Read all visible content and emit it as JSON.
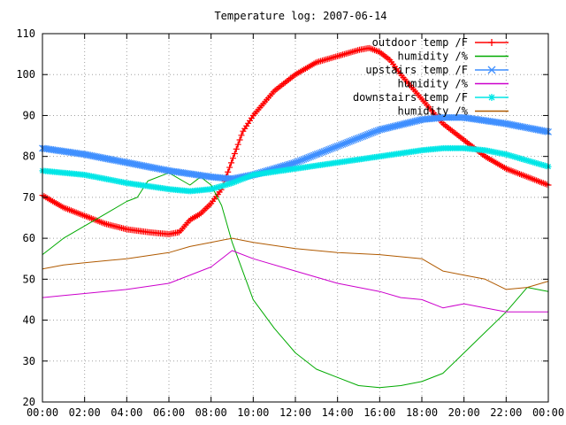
{
  "chart_data": {
    "type": "line",
    "title": "Temperature log: 2007-06-14",
    "xlabel": "",
    "ylabel": "",
    "xlim": [
      0,
      24
    ],
    "ylim": [
      20,
      110
    ],
    "grid": true,
    "legend_placement": "top-right",
    "x_ticks": [
      "00:00",
      "02:00",
      "04:00",
      "06:00",
      "08:00",
      "10:00",
      "12:00",
      "14:00",
      "16:00",
      "18:00",
      "20:00",
      "22:00",
      "00:00"
    ],
    "y_ticks": [
      "20",
      "30",
      "40",
      "50",
      "60",
      "70",
      "80",
      "90",
      "100",
      "110"
    ],
    "series": [
      {
        "name": "outdoor temp /F",
        "color": "#ff0000",
        "marker": "plus",
        "x": [
          0,
          1,
          2,
          3,
          4,
          5,
          6,
          6.5,
          7,
          7.5,
          8,
          8.5,
          9,
          9.5,
          10,
          11,
          12,
          13,
          14,
          15,
          15.5,
          16,
          16.5,
          17,
          18,
          19,
          20,
          21,
          22,
          23,
          24
        ],
        "y": [
          70.5,
          67.5,
          65.5,
          63.5,
          62.2,
          61.5,
          61,
          61.5,
          64.5,
          66,
          68.5,
          72,
          79,
          86,
          90,
          96,
          100,
          103,
          104.5,
          106,
          106.5,
          105.5,
          103.5,
          100,
          94,
          88,
          84,
          80,
          77,
          75,
          73
        ]
      },
      {
        "name": "humidity /%",
        "color": "#00aa00",
        "marker": "none",
        "x": [
          0,
          1,
          2,
          3,
          4,
          4.5,
          5,
          6,
          7,
          7.5,
          8,
          8.5,
          9,
          9.5,
          10,
          11,
          12,
          13,
          14,
          15,
          16,
          17,
          18,
          19,
          20,
          21,
          22,
          23,
          24
        ],
        "y": [
          56,
          60,
          63,
          66,
          69,
          70,
          74,
          76,
          73,
          75,
          73,
          68,
          59,
          52,
          45,
          38,
          32,
          28,
          26,
          24,
          23.5,
          24,
          25,
          27,
          32,
          37,
          42,
          48,
          47
        ]
      },
      {
        "name": "upstairs temp /F",
        "color": "#3f8fff",
        "marker": "x",
        "x": [
          0,
          2,
          4,
          6,
          8,
          9,
          10,
          12,
          14,
          16,
          18,
          19,
          20,
          22,
          24
        ],
        "y": [
          82,
          80.5,
          78.5,
          76.5,
          75,
          74.5,
          75.5,
          78.5,
          82.5,
          86.5,
          89,
          89.5,
          89.5,
          88,
          86
        ]
      },
      {
        "name": "humidity /%",
        "color": "#cc00cc",
        "marker": "none",
        "x": [
          0,
          1,
          2,
          4,
          6,
          8,
          9,
          10,
          12,
          14,
          16,
          17,
          18,
          19,
          20,
          21,
          22,
          24
        ],
        "y": [
          45.5,
          46,
          46.5,
          47.5,
          49,
          53,
          57,
          55,
          52,
          49,
          47,
          45.5,
          45,
          43,
          44,
          43,
          42,
          42
        ]
      },
      {
        "name": "downstairs temp /F",
        "color": "#00e6e6",
        "marker": "star",
        "x": [
          0,
          2,
          4,
          6,
          7,
          8,
          9,
          10,
          12,
          14,
          16,
          18,
          19,
          20,
          21,
          22,
          24
        ],
        "y": [
          76.5,
          75.5,
          73.5,
          72,
          71.5,
          72,
          73.5,
          75.5,
          77,
          78.5,
          80,
          81.5,
          82,
          82,
          81.5,
          80.5,
          77.5
        ]
      },
      {
        "name": "humidity /%",
        "color": "#b05a00",
        "marker": "none",
        "x": [
          0,
          1,
          2,
          4,
          6,
          7,
          8,
          9,
          10,
          12,
          14,
          16,
          18,
          19,
          20,
          21,
          22,
          23,
          24
        ],
        "y": [
          52.5,
          53.5,
          54,
          55,
          56.5,
          58,
          59,
          60,
          59,
          57.5,
          56.5,
          56,
          55,
          52,
          51,
          50,
          47.5,
          48,
          49.5
        ]
      }
    ]
  }
}
